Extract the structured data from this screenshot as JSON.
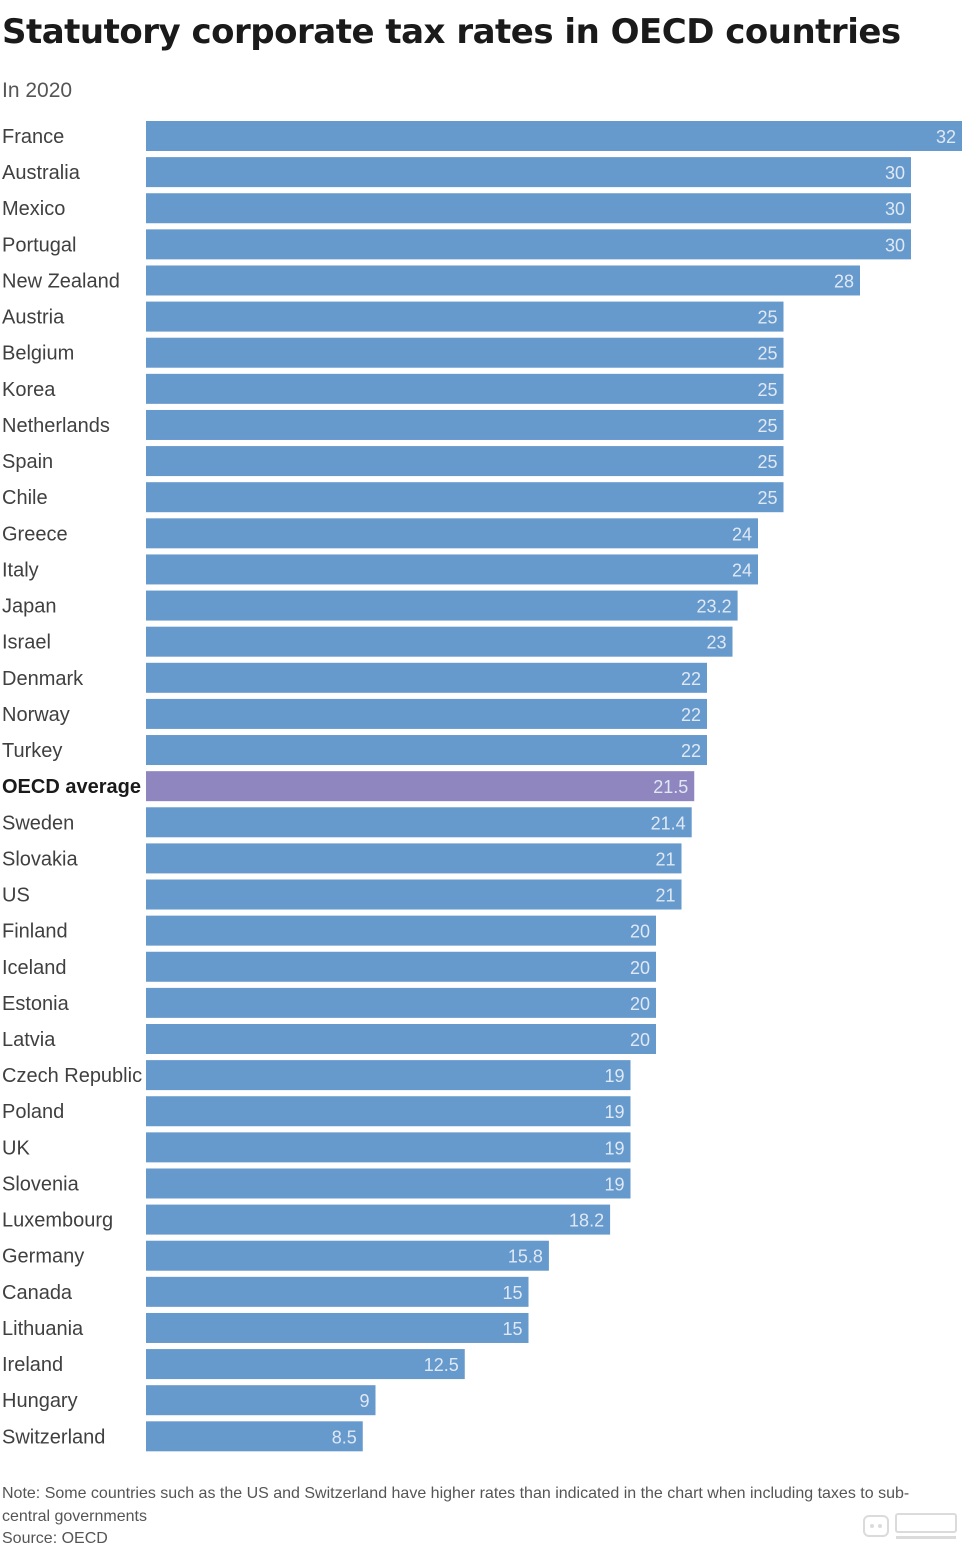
{
  "title": "Statutory corporate tax rates in OECD countries",
  "subtitle": "In 2020",
  "note": "Note: Some countries such as the US and Switzerland have higher rates than indicated in the chart when including taxes to sub-central governments",
  "source": "Source: OECD",
  "colors": {
    "bar": "#6699cc",
    "highlight": "#8f86c0"
  },
  "chart_data": {
    "type": "bar",
    "orientation": "horizontal",
    "title": "Statutory corporate tax rates in OECD countries",
    "subtitle": "In 2020",
    "xlim": [
      0,
      32
    ],
    "grid": false,
    "legend": false,
    "highlight": "OECD average",
    "categories": [
      "France",
      "Australia",
      "Mexico",
      "Portugal",
      "New Zealand",
      "Austria",
      "Belgium",
      "Korea",
      "Netherlands",
      "Spain",
      "Chile",
      "Greece",
      "Italy",
      "Japan",
      "Israel",
      "Denmark",
      "Norway",
      "Turkey",
      "OECD average",
      "Sweden",
      "Slovakia",
      "US",
      "Finland",
      "Iceland",
      "Estonia",
      "Latvia",
      "Czech Republic",
      "Poland",
      "UK",
      "Slovenia",
      "Luxembourg",
      "Germany",
      "Canada",
      "Lithuania",
      "Ireland",
      "Hungary",
      "Switzerland"
    ],
    "values": [
      32,
      30,
      30,
      30,
      28,
      25,
      25,
      25,
      25,
      25,
      25,
      24,
      24,
      23.2,
      23,
      22,
      22,
      22,
      21.5,
      21.4,
      21,
      21,
      20,
      20,
      20,
      20,
      19,
      19,
      19,
      19,
      18.2,
      15.8,
      15,
      15,
      12.5,
      9,
      8.5
    ],
    "value_labels": [
      "32",
      "30",
      "30",
      "30",
      "28",
      "25",
      "25",
      "25",
      "25",
      "25",
      "25",
      "24",
      "24",
      "23.2",
      "23",
      "22",
      "22",
      "22",
      "21.5",
      "21.4",
      "21",
      "21",
      "20",
      "20",
      "20",
      "20",
      "19",
      "19",
      "19",
      "19",
      "18.2",
      "15.8",
      "15",
      "15",
      "12.5",
      "9",
      "8.5"
    ]
  }
}
